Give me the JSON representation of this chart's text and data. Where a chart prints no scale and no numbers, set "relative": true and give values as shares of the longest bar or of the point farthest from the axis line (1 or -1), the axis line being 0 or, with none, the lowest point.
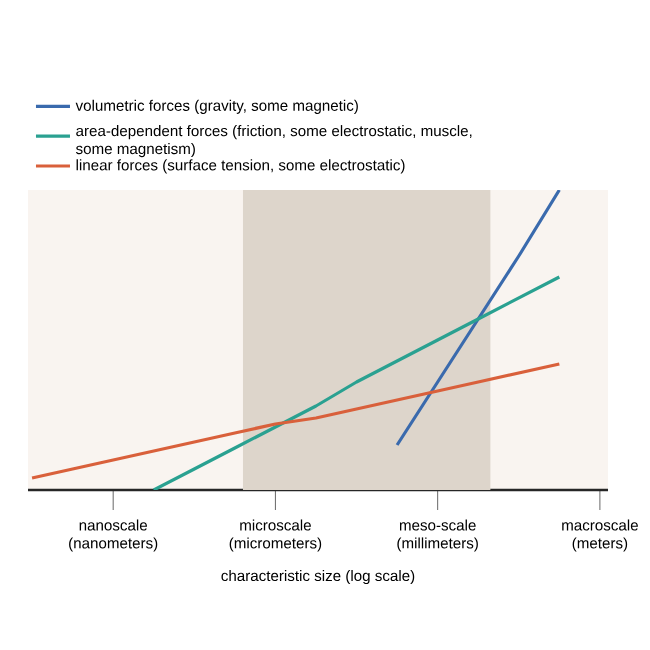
{
  "chart_data": {
    "type": "line",
    "relative": true,
    "xlabel": "characteristic size (log scale)",
    "categories": [
      null,
      null,
      "nanoscale (nanometers)",
      null,
      null,
      null,
      "microscale (micrometers)",
      null,
      null,
      null,
      "meso-scale (millimeters)",
      null,
      null,
      null,
      "macroscale (meters)"
    ],
    "series": [
      {
        "name": "volumetric forces (gravity, some magnetic)",
        "color": "#3a6aad",
        "values": [
          null,
          null,
          null,
          null,
          null,
          null,
          null,
          null,
          null,
          0.15,
          0.36,
          0.57,
          0.78,
          1,
          null
        ]
      },
      {
        "name": "area-dependent forces (friction, some electrostatic, muscle, some magnetism)",
        "color": "#2aa191",
        "values": [
          null,
          null,
          null,
          0,
          0.07,
          0.14,
          0.21,
          0.28,
          0.36,
          0.43,
          0.5,
          0.57,
          0.64,
          0.71,
          null
        ]
      },
      {
        "name": "linear forces (surface tension, some electrostatic)",
        "color": "#d9603b",
        "values": [
          0.04,
          0.07,
          0.1,
          0.13,
          0.16,
          0.19,
          0.22,
          0.24,
          0.27,
          0.3,
          0.33,
          0.36,
          0.39,
          0.42,
          null
        ]
      }
    ],
    "legend": "top left",
    "grid": false
  }
}
